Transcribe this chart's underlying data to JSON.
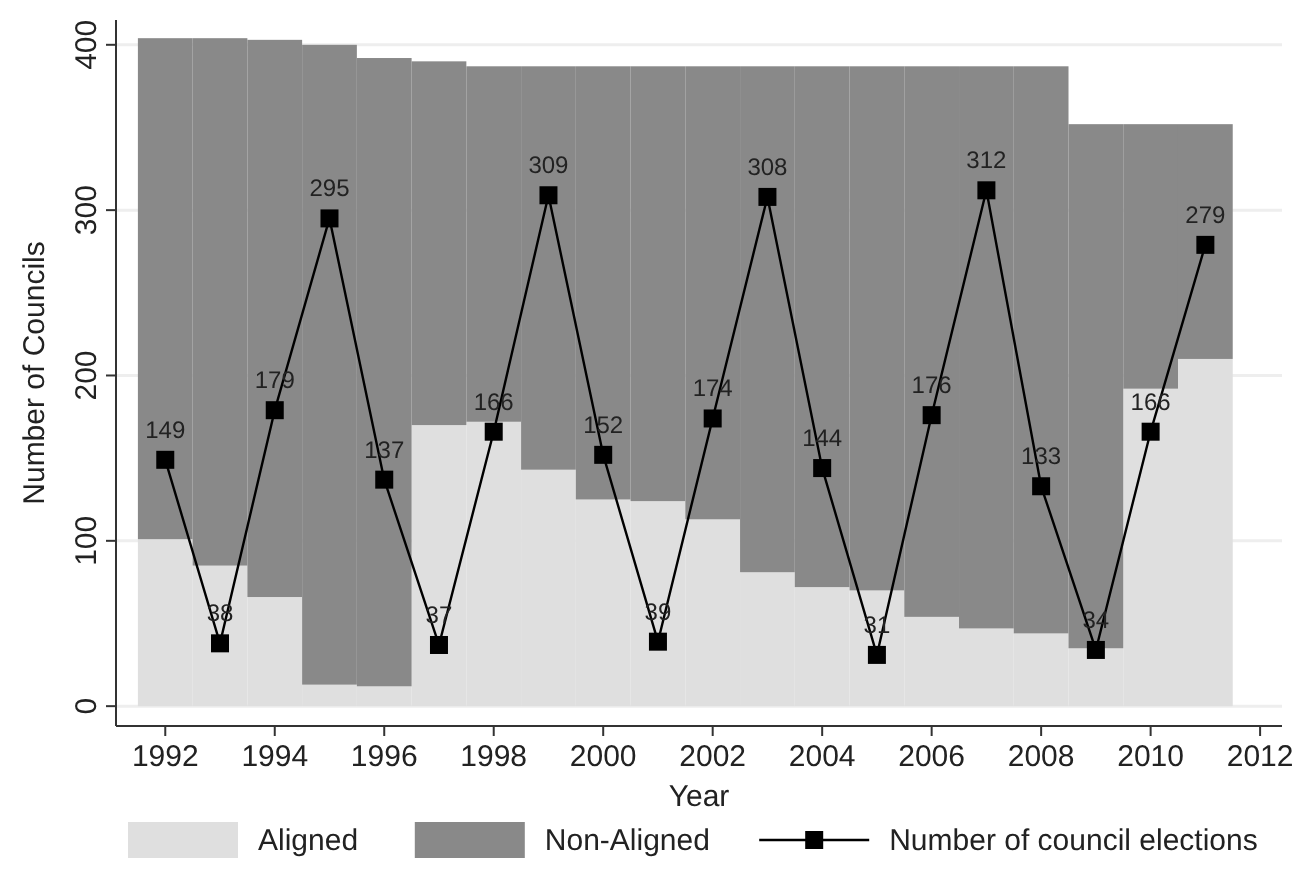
{
  "chart_data": {
    "type": "bar",
    "stacked": true,
    "xlabel": "Year",
    "ylabel": "Number of Councils",
    "x": [
      1992,
      1993,
      1994,
      1995,
      1996,
      1997,
      1998,
      1999,
      2000,
      2001,
      2002,
      2003,
      2004,
      2005,
      2006,
      2007,
      2008,
      2009,
      2010,
      2011
    ],
    "xlim": [
      1991.1,
      2012.4
    ],
    "xticks": [
      1992,
      1994,
      1996,
      1998,
      2000,
      2002,
      2004,
      2006,
      2008,
      2010,
      2012
    ],
    "ylim": [
      -12,
      415
    ],
    "yticks": [
      0,
      100,
      200,
      300,
      400
    ],
    "grid": "y",
    "legend": "bottom",
    "series": [
      {
        "name": "Aligned",
        "color": "#dfdfdf",
        "values": [
          101,
          85,
          66,
          13,
          12,
          170,
          172,
          143,
          125,
          124,
          113,
          81,
          72,
          70,
          54,
          47,
          44,
          35,
          192,
          210
        ]
      },
      {
        "name": "Non-Aligned",
        "color": "#898989",
        "values": [
          303,
          319,
          337,
          387,
          380,
          220,
          215,
          244,
          262,
          263,
          274,
          306,
          315,
          317,
          333,
          340,
          343,
          317,
          160,
          142
        ]
      },
      {
        "name": "Number of council elections",
        "type": "line",
        "color": "#000000",
        "marker": "square",
        "data_labels": true,
        "values": [
          149,
          38,
          179,
          295,
          137,
          37,
          166,
          309,
          152,
          39,
          174,
          308,
          144,
          31,
          176,
          312,
          133,
          34,
          166,
          279
        ]
      }
    ]
  }
}
